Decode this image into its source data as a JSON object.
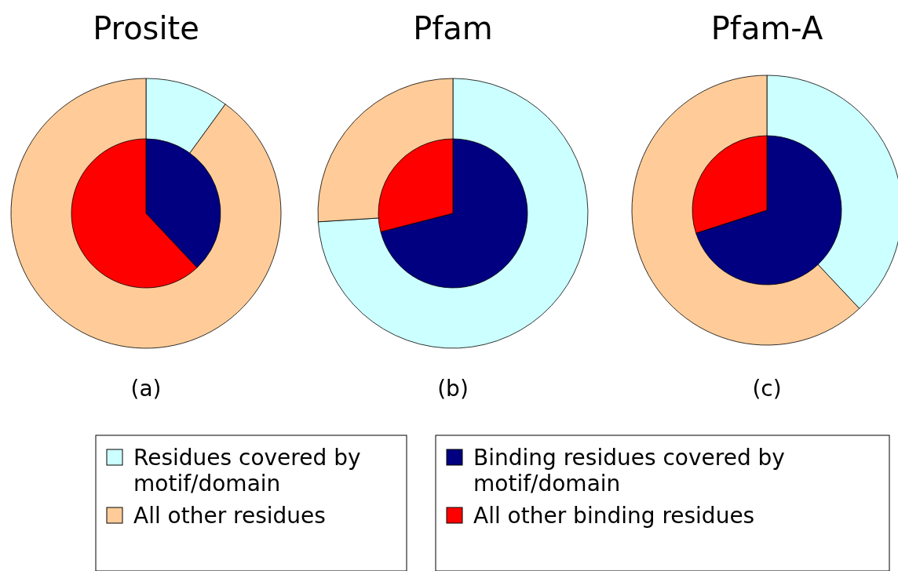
{
  "chart_data": [
    {
      "type": "pie",
      "title": "Prosite",
      "categories": [
        "Residues covered by motif/domain",
        "All other residues",
        "Binding residues covered by motif/domain",
        "All other binding residues"
      ],
      "colors": [
        "#ccffff",
        "#ffcc99",
        "#000080",
        "#ff0000"
      ],
      "series": [
        {
          "type": "donut",
          "values": [
            10,
            90,
            null,
            null
          ]
        },
        {
          "type": "pie",
          "values": [
            null,
            null,
            38,
            62
          ]
        }
      ],
      "annotations": [
        "(a)"
      ],
      "legend": "bottom"
    },
    {
      "type": "pie",
      "title": "Pfam",
      "colors": [
        "#ccffff",
        "#ffcc99",
        "#000080",
        "#ff0000"
      ],
      "series": [
        {
          "type": "donut",
          "values": [
            74,
            26,
            null,
            null
          ]
        },
        {
          "type": "pie",
          "values": [
            null,
            null,
            71,
            29
          ]
        }
      ],
      "annotations": [
        "(b)"
      ]
    },
    {
      "type": "pie",
      "title": "Pfam-A",
      "colors": [
        "#ccffff",
        "#ffcc99",
        "#000080",
        "#ff0000"
      ],
      "series": [
        {
          "type": "donut",
          "values": [
            38,
            62,
            null,
            null
          ]
        },
        {
          "type": "pie",
          "values": [
            null,
            null,
            70,
            30
          ]
        }
      ],
      "annotations": [
        "(c)"
      ]
    }
  ]
}
